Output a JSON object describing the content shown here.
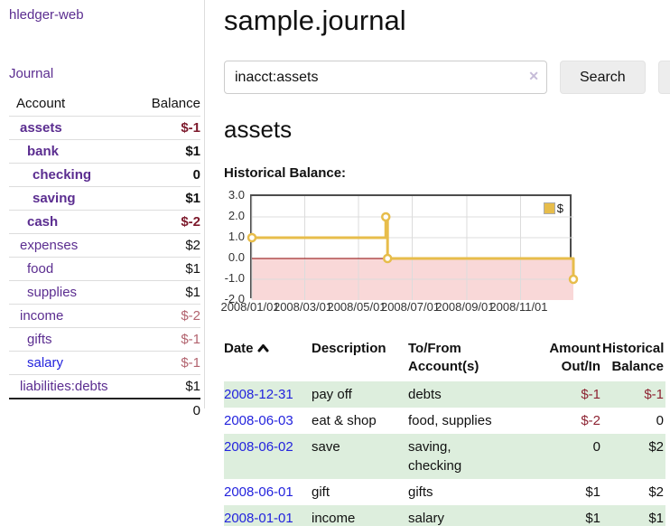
{
  "sidebar": {
    "brand": "hledger-web",
    "journal_link": "Journal",
    "accounts": {
      "headers": {
        "account": "Account",
        "balance": "Balance"
      },
      "rows": [
        {
          "name": "assets",
          "balance": "$-1"
        },
        {
          "name": "bank",
          "balance": "$1"
        },
        {
          "name": "checking",
          "balance": "0"
        },
        {
          "name": "saving",
          "balance": "$1"
        },
        {
          "name": "cash",
          "balance": "$-2"
        },
        {
          "name": "expenses",
          "balance": "$2"
        },
        {
          "name": "food",
          "balance": "$1"
        },
        {
          "name": "supplies",
          "balance": "$1"
        },
        {
          "name": "income",
          "balance": "$-2"
        },
        {
          "name": "gifts",
          "balance": "$-1"
        },
        {
          "name": "salary",
          "balance": "$-1"
        },
        {
          "name": "liabilities:debts",
          "balance": "$1"
        }
      ],
      "total": "0"
    }
  },
  "header": {
    "title": "sample.journal"
  },
  "search": {
    "value": "inacct:assets",
    "clear_icon": "✕",
    "button_label": "Search",
    "help_label": "?"
  },
  "account_page": {
    "heading": "assets"
  },
  "chart_data": {
    "type": "line",
    "step": true,
    "title": "Historical Balance:",
    "xlim": [
      "2008-01-01",
      "2008-12-31"
    ],
    "ylim": [
      -2.0,
      3.0
    ],
    "y_ticks": [
      "3.0",
      "2.0",
      "1.0",
      "0.0",
      "-1.0",
      "-2.0"
    ],
    "x_ticks": [
      {
        "label": "2008/01/01",
        "date": "2008-01-01"
      },
      {
        "label": "2008/03/01",
        "date": "2008-03-01"
      },
      {
        "label": "2008/05/01",
        "date": "2008-05-01"
      },
      {
        "label": "2008/07/01",
        "date": "2008-07-01"
      },
      {
        "label": "2008/09/01",
        "date": "2008-09-01"
      },
      {
        "label": "2008/11/01",
        "date": "2008-11-01"
      }
    ],
    "series": [
      {
        "name": "$",
        "color": "#e7bd4b",
        "points": [
          [
            "2008-01-01",
            1
          ],
          [
            "2008-06-01",
            2
          ],
          [
            "2008-06-03",
            0
          ],
          [
            "2008-12-31",
            -1
          ]
        ]
      }
    ],
    "zero_line_color": "#8b0000",
    "negative_region_fill": "#f9d8d8",
    "grid_color": "#dcdcdc",
    "legend": {
      "label": "$",
      "position": "top-right"
    }
  },
  "register": {
    "headers": {
      "date": "Date",
      "description": "Description",
      "accounts": "To/From Account(s)",
      "amount": "Amount Out/In",
      "balance": "Historical Balance"
    },
    "rows": [
      {
        "date": "2008-12-31",
        "description": "pay off",
        "accounts": "debts",
        "amount": "$-1",
        "balance": "$-1"
      },
      {
        "date": "2008-06-03",
        "description": "eat & shop",
        "accounts": "food, supplies",
        "amount": "$-2",
        "balance": "0"
      },
      {
        "date": "2008-06-02",
        "description": "save",
        "accounts": "saving,\nchecking",
        "amount": "0",
        "balance": "$2"
      },
      {
        "date": "2008-06-01",
        "description": "gift",
        "accounts": "gifts",
        "amount": "$1",
        "balance": "$2"
      },
      {
        "date": "2008-01-01",
        "description": "income",
        "accounts": "salary",
        "amount": "$1",
        "balance": "$1"
      }
    ]
  },
  "colors": {
    "link_purple": "#5b2d90",
    "link_blue": "#2323dd",
    "negative_bold": "#7d1a2c",
    "negative_table": "#8e2433",
    "negative_light": "#b2636e",
    "row_stripe_green": "#ddeedd",
    "chart_line_gold": "#e7bd4b",
    "chart_negative_pink": "#f9d8d8",
    "chart_zero_line": "#8b0000",
    "button_gray": "#ededed"
  }
}
